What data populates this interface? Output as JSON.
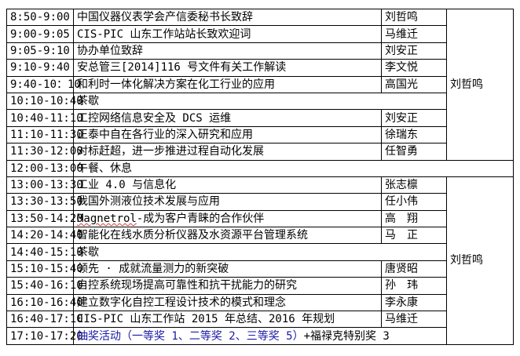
{
  "morning": [
    {
      "time": "8:50-9:00",
      "topic": "中国仪器仪表学会产信委秘书长致辞",
      "speaker": "刘哲鸣"
    },
    {
      "time": "9:00-9:05",
      "topic": "CIS-PIC 山东工作站站长致欢迎词",
      "speaker": "马维迁"
    },
    {
      "time": "9:05-9:10",
      "topic": "协办单位致辞",
      "speaker": "刘安正"
    },
    {
      "time": "9:10-9:40",
      "topic": "安总管三[2014]116 号文件有关工作解读",
      "speaker": "李文悦"
    },
    {
      "time": "9:40-10：10",
      "topic": "和利时一体化解决方案在化工行业的应用",
      "speaker": "高国光"
    },
    {
      "time": "10:10-10:40",
      "topic": "茶歇"
    },
    {
      "time": "10:40-11:10",
      "topic": "工控网络信息安全及 DCS 运维",
      "speaker": "刘安正"
    },
    {
      "time": "11:10-11:30",
      "topic": "正泰中自在各行业的深入研究和应用",
      "speaker": "徐瑞东"
    },
    {
      "time": "11:30-12:00",
      "topic": "对标赶超，进一步推进过程自动化发展",
      "speaker": "任智勇"
    }
  ],
  "morning_chair": "刘哲鸣",
  "lunch": {
    "time": "12:00-13:00",
    "topic": "午餐、休息"
  },
  "afternoon": [
    {
      "time": "13:00-13:30",
      "topic": "工业 4.0 与信息化",
      "speaker": "张志檩"
    },
    {
      "time": "13:30-13:50",
      "topic": "我国外测液位技术发展与应用",
      "speaker": "任小伟"
    },
    {
      "time": "13:50-14:20",
      "topic_brand": "Magnetrol",
      "topic": "-成为客户青睐的合作伙伴",
      "speaker": "高　翔"
    },
    {
      "time": "14:20-14:40",
      "topic": "智能化在线水质分析仪器及水资源平台管理系统",
      "speaker": "马　正"
    },
    {
      "time": "14:40-15:10",
      "topic": "茶歇"
    },
    {
      "time": "15:10-15:40",
      "topic": "领先 · 成就流量测力的新突破",
      "speaker": "唐贤昭"
    },
    {
      "time": "15:40-16:10",
      "topic": "自控系统现场提高可靠性和抗干扰能力的研究",
      "speaker": "孙　玮"
    },
    {
      "time": "16:10-16:40",
      "topic": "建立数字化自控工程设计技术的模式和理念",
      "speaker": "李永康"
    },
    {
      "time": "16:40-17:10",
      "topic": "CIS-PIC 山东工作站 2015 年总结、2016 年规划",
      "speaker": "马维迁"
    }
  ],
  "lottery": {
    "time": "17:10-17:20",
    "topic_blue": "抽奖活动（一等奖 1、二等奖 2、三等奖 5）",
    "topic_black": "+福禄克特别奖 3"
  },
  "afternoon_chair": "刘哲鸣",
  "colors": {
    "lottery_text": "#1a1aa8",
    "border": "#000000"
  }
}
